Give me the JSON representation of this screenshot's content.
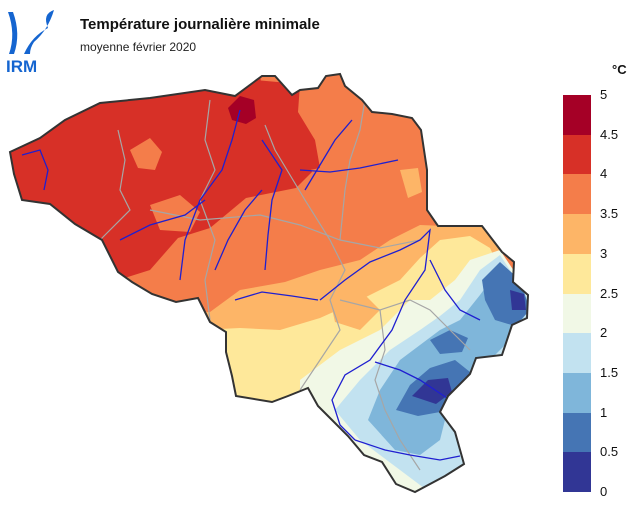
{
  "header": {
    "logo_text": "IRM",
    "title": "Température journalière minimale",
    "subtitle": "moyenne février 2020"
  },
  "legend": {
    "unit": "°C",
    "classes": [
      {
        "from": 4.5,
        "to": 5,
        "color": "#a50026"
      },
      {
        "from": 4,
        "to": 4.5,
        "color": "#d73027"
      },
      {
        "from": 3.5,
        "to": 4,
        "color": "#f47d4a"
      },
      {
        "from": 3,
        "to": 3.5,
        "color": "#fdb567"
      },
      {
        "from": 2.5,
        "to": 3,
        "color": "#fee89a"
      },
      {
        "from": 2,
        "to": 2.5,
        "color": "#f1f8e6"
      },
      {
        "from": 1.5,
        "to": 2,
        "color": "#c2e2f0"
      },
      {
        "from": 1,
        "to": 1.5,
        "color": "#7fb6da"
      },
      {
        "from": 0.5,
        "to": 1,
        "color": "#4575b4"
      },
      {
        "from": 0,
        "to": 0.5,
        "color": "#313695"
      }
    ],
    "ticks": [
      "5",
      "4.5",
      "4",
      "3.5",
      "3",
      "2.5",
      "2",
      "1.5",
      "1",
      "0.5",
      "0"
    ]
  },
  "colors": {
    "border": "#333333",
    "rivers": "#1f1fd0",
    "provinces": "#a6a6a6",
    "logo": "#1565d0"
  }
}
